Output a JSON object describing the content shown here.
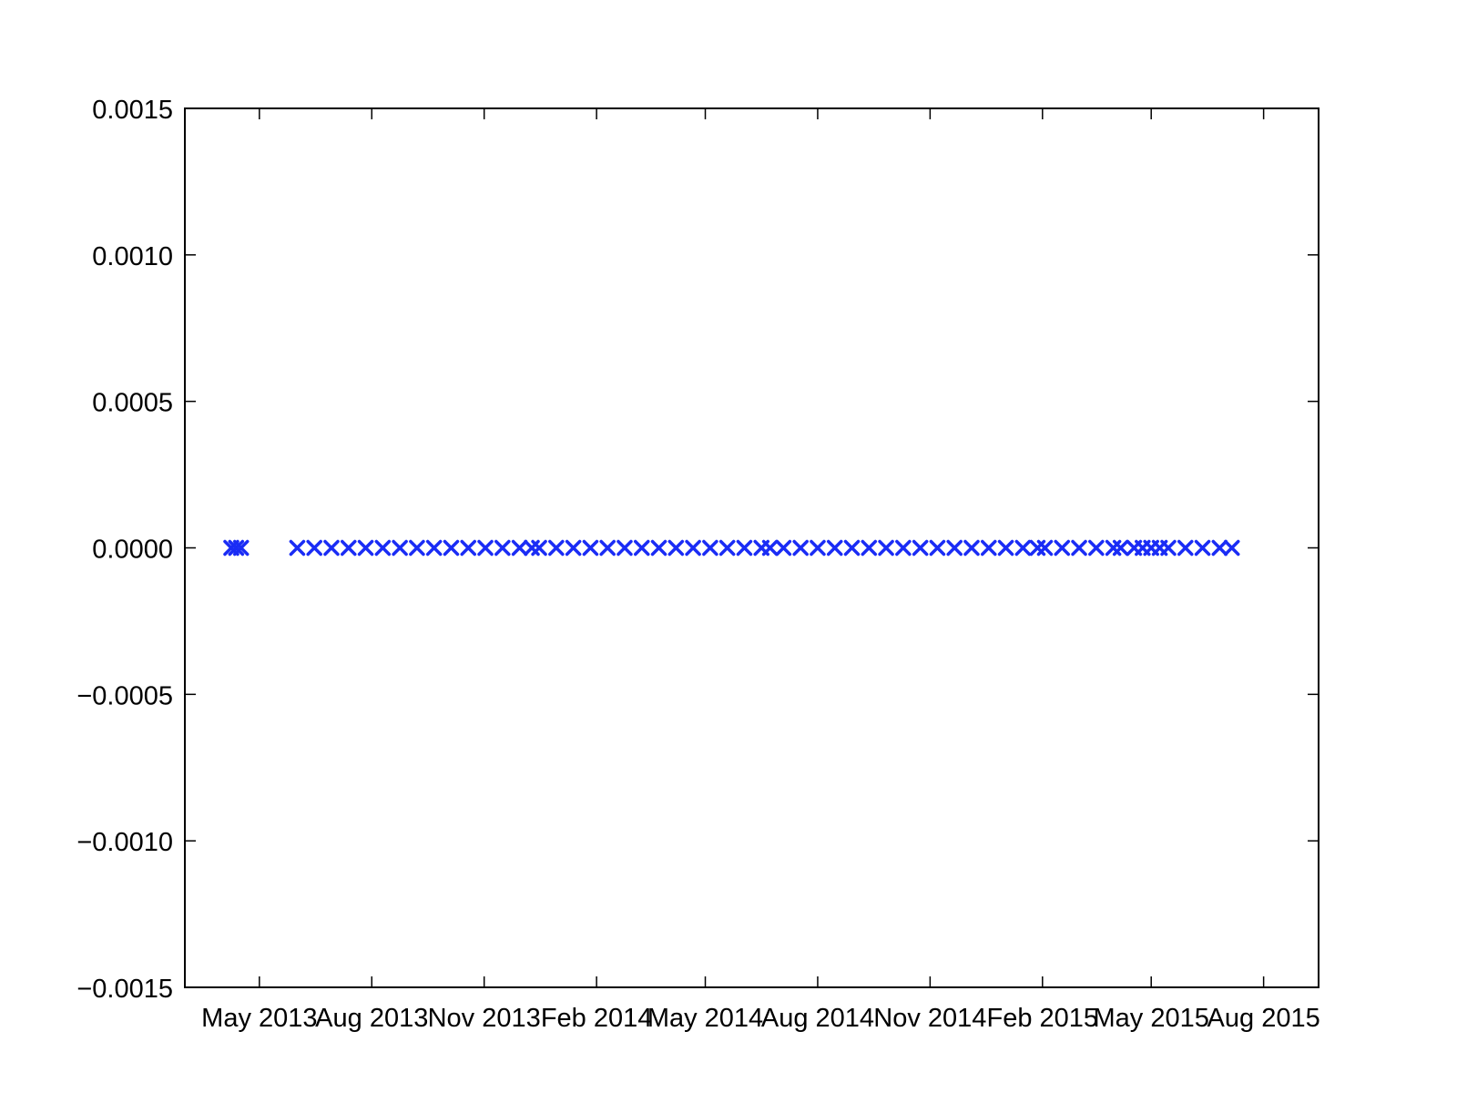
{
  "chart_data": {
    "type": "scatter",
    "title": "",
    "xlabel": "",
    "ylabel": "",
    "x_type": "date",
    "xlim": [
      "2013-03-01",
      "2015-09-15"
    ],
    "ylim": [
      -0.0015,
      0.0015
    ],
    "grid": false,
    "legend": "none",
    "marker": "x",
    "series_color": "#1a2cf5",
    "x_ticks": [
      "2013-05-01",
      "2013-08-01",
      "2013-11-01",
      "2014-02-01",
      "2014-05-01",
      "2014-08-01",
      "2014-11-01",
      "2015-02-01",
      "2015-05-01",
      "2015-08-01"
    ],
    "x_tick_labels": [
      "May 2013",
      "Aug 2013",
      "Nov 2013",
      "Feb 2014",
      "May 2014",
      "Aug 2014",
      "Nov 2014",
      "Feb 2015",
      "May 2015",
      "Aug 2015"
    ],
    "y_ticks": [
      0.0015,
      0.001,
      0.0005,
      0.0,
      -0.0005,
      -0.001,
      -0.0015
    ],
    "y_tick_labels": [
      "0.0015",
      "0.0010",
      "0.0005",
      "0.0000",
      "−0.0005",
      "−0.0010",
      "−0.0015"
    ],
    "series": [
      {
        "x": [
          "2013-04-08",
          "2013-04-12",
          "2013-04-16",
          "2013-06-01",
          "2013-06-15",
          "2013-06-29",
          "2013-07-13",
          "2013-07-27",
          "2013-08-10",
          "2013-08-24",
          "2013-09-07",
          "2013-09-21",
          "2013-10-05",
          "2013-10-19",
          "2013-11-02",
          "2013-11-16",
          "2013-11-30",
          "2013-12-10",
          "2013-12-16",
          "2013-12-30",
          "2014-01-13",
          "2014-01-27",
          "2014-02-10",
          "2014-02-24",
          "2014-03-10",
          "2014-03-24",
          "2014-04-07",
          "2014-04-21",
          "2014-05-05",
          "2014-05-19",
          "2014-06-02",
          "2014-06-16",
          "2014-06-23",
          "2014-07-04",
          "2014-07-18",
          "2014-08-01",
          "2014-08-15",
          "2014-08-29",
          "2014-09-12",
          "2014-09-26",
          "2014-10-10",
          "2014-10-24",
          "2014-11-07",
          "2014-11-21",
          "2014-12-05",
          "2014-12-19",
          "2015-01-02",
          "2015-01-16",
          "2015-01-28",
          "2015-02-03",
          "2015-02-17",
          "2015-03-03",
          "2015-03-17",
          "2015-03-31",
          "2015-04-06",
          "2015-04-17",
          "2015-04-24",
          "2015-05-01",
          "2015-05-08",
          "2015-05-15",
          "2015-05-29",
          "2015-06-12",
          "2015-06-26",
          "2015-07-06"
        ],
        "y": [
          0,
          0,
          0,
          0,
          0,
          0,
          0,
          0,
          0,
          0,
          0,
          0,
          0,
          0,
          0,
          0,
          0,
          0,
          0,
          0,
          0,
          0,
          0,
          0,
          0,
          0,
          0,
          0,
          0,
          0,
          0,
          0,
          0,
          0,
          0,
          0,
          0,
          0,
          0,
          0,
          0,
          0,
          0,
          0,
          0,
          0,
          0,
          0,
          0,
          0,
          0,
          0,
          0,
          0,
          0,
          0,
          0,
          0,
          0,
          0,
          0,
          0,
          0,
          0
        ]
      }
    ]
  }
}
